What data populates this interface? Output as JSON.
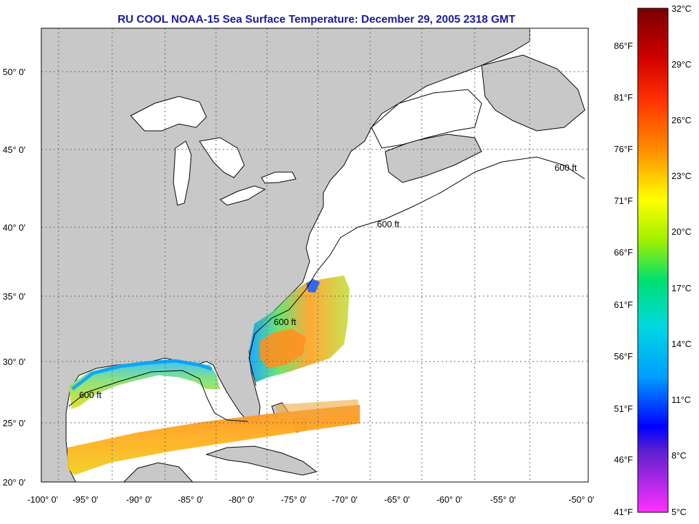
{
  "title": "RU COOL  NOAA-15  Sea Surface Temperature:  December 29, 2005 2318 GMT",
  "lat_labels": [
    "50° 0'",
    "45° 0'",
    "40° 0'",
    "35° 0'",
    "30° 0'",
    "25° 0'",
    "20° 0'"
  ],
  "lon_labels": [
    "-100° 0'",
    "-95° 0'",
    "-90° 0'",
    "-85° 0'",
    "-80° 0'",
    "-75° 0'",
    "-70° 0'",
    "-65° 0'",
    "-60° 0'",
    "-55° 0'",
    "-50° 0'"
  ],
  "isobath_label": "600 ft",
  "colorbar": {
    "fahrenheit_labels": [
      "86°F",
      "81°F",
      "76°F",
      "71°F",
      "66°F",
      "61°F",
      "56°F",
      "51°F",
      "46°F",
      "41°F"
    ],
    "celsius_labels": [
      "32°C",
      "29°C",
      "26°C",
      "23°C",
      "20°C",
      "17°C",
      "14°C",
      "11°C",
      "8°C",
      "5°C"
    ],
    "colors": [
      "#8b0000",
      "#ff2020",
      "#ff8c00",
      "#ffff00",
      "#7cfc00",
      "#00e0c0",
      "#00b0ff",
      "#0000ff",
      "#8030e0",
      "#ff30ff"
    ]
  },
  "colors": {
    "land": "#c8c8c8",
    "water": "#ffffff",
    "title": "#1a1aa0"
  }
}
